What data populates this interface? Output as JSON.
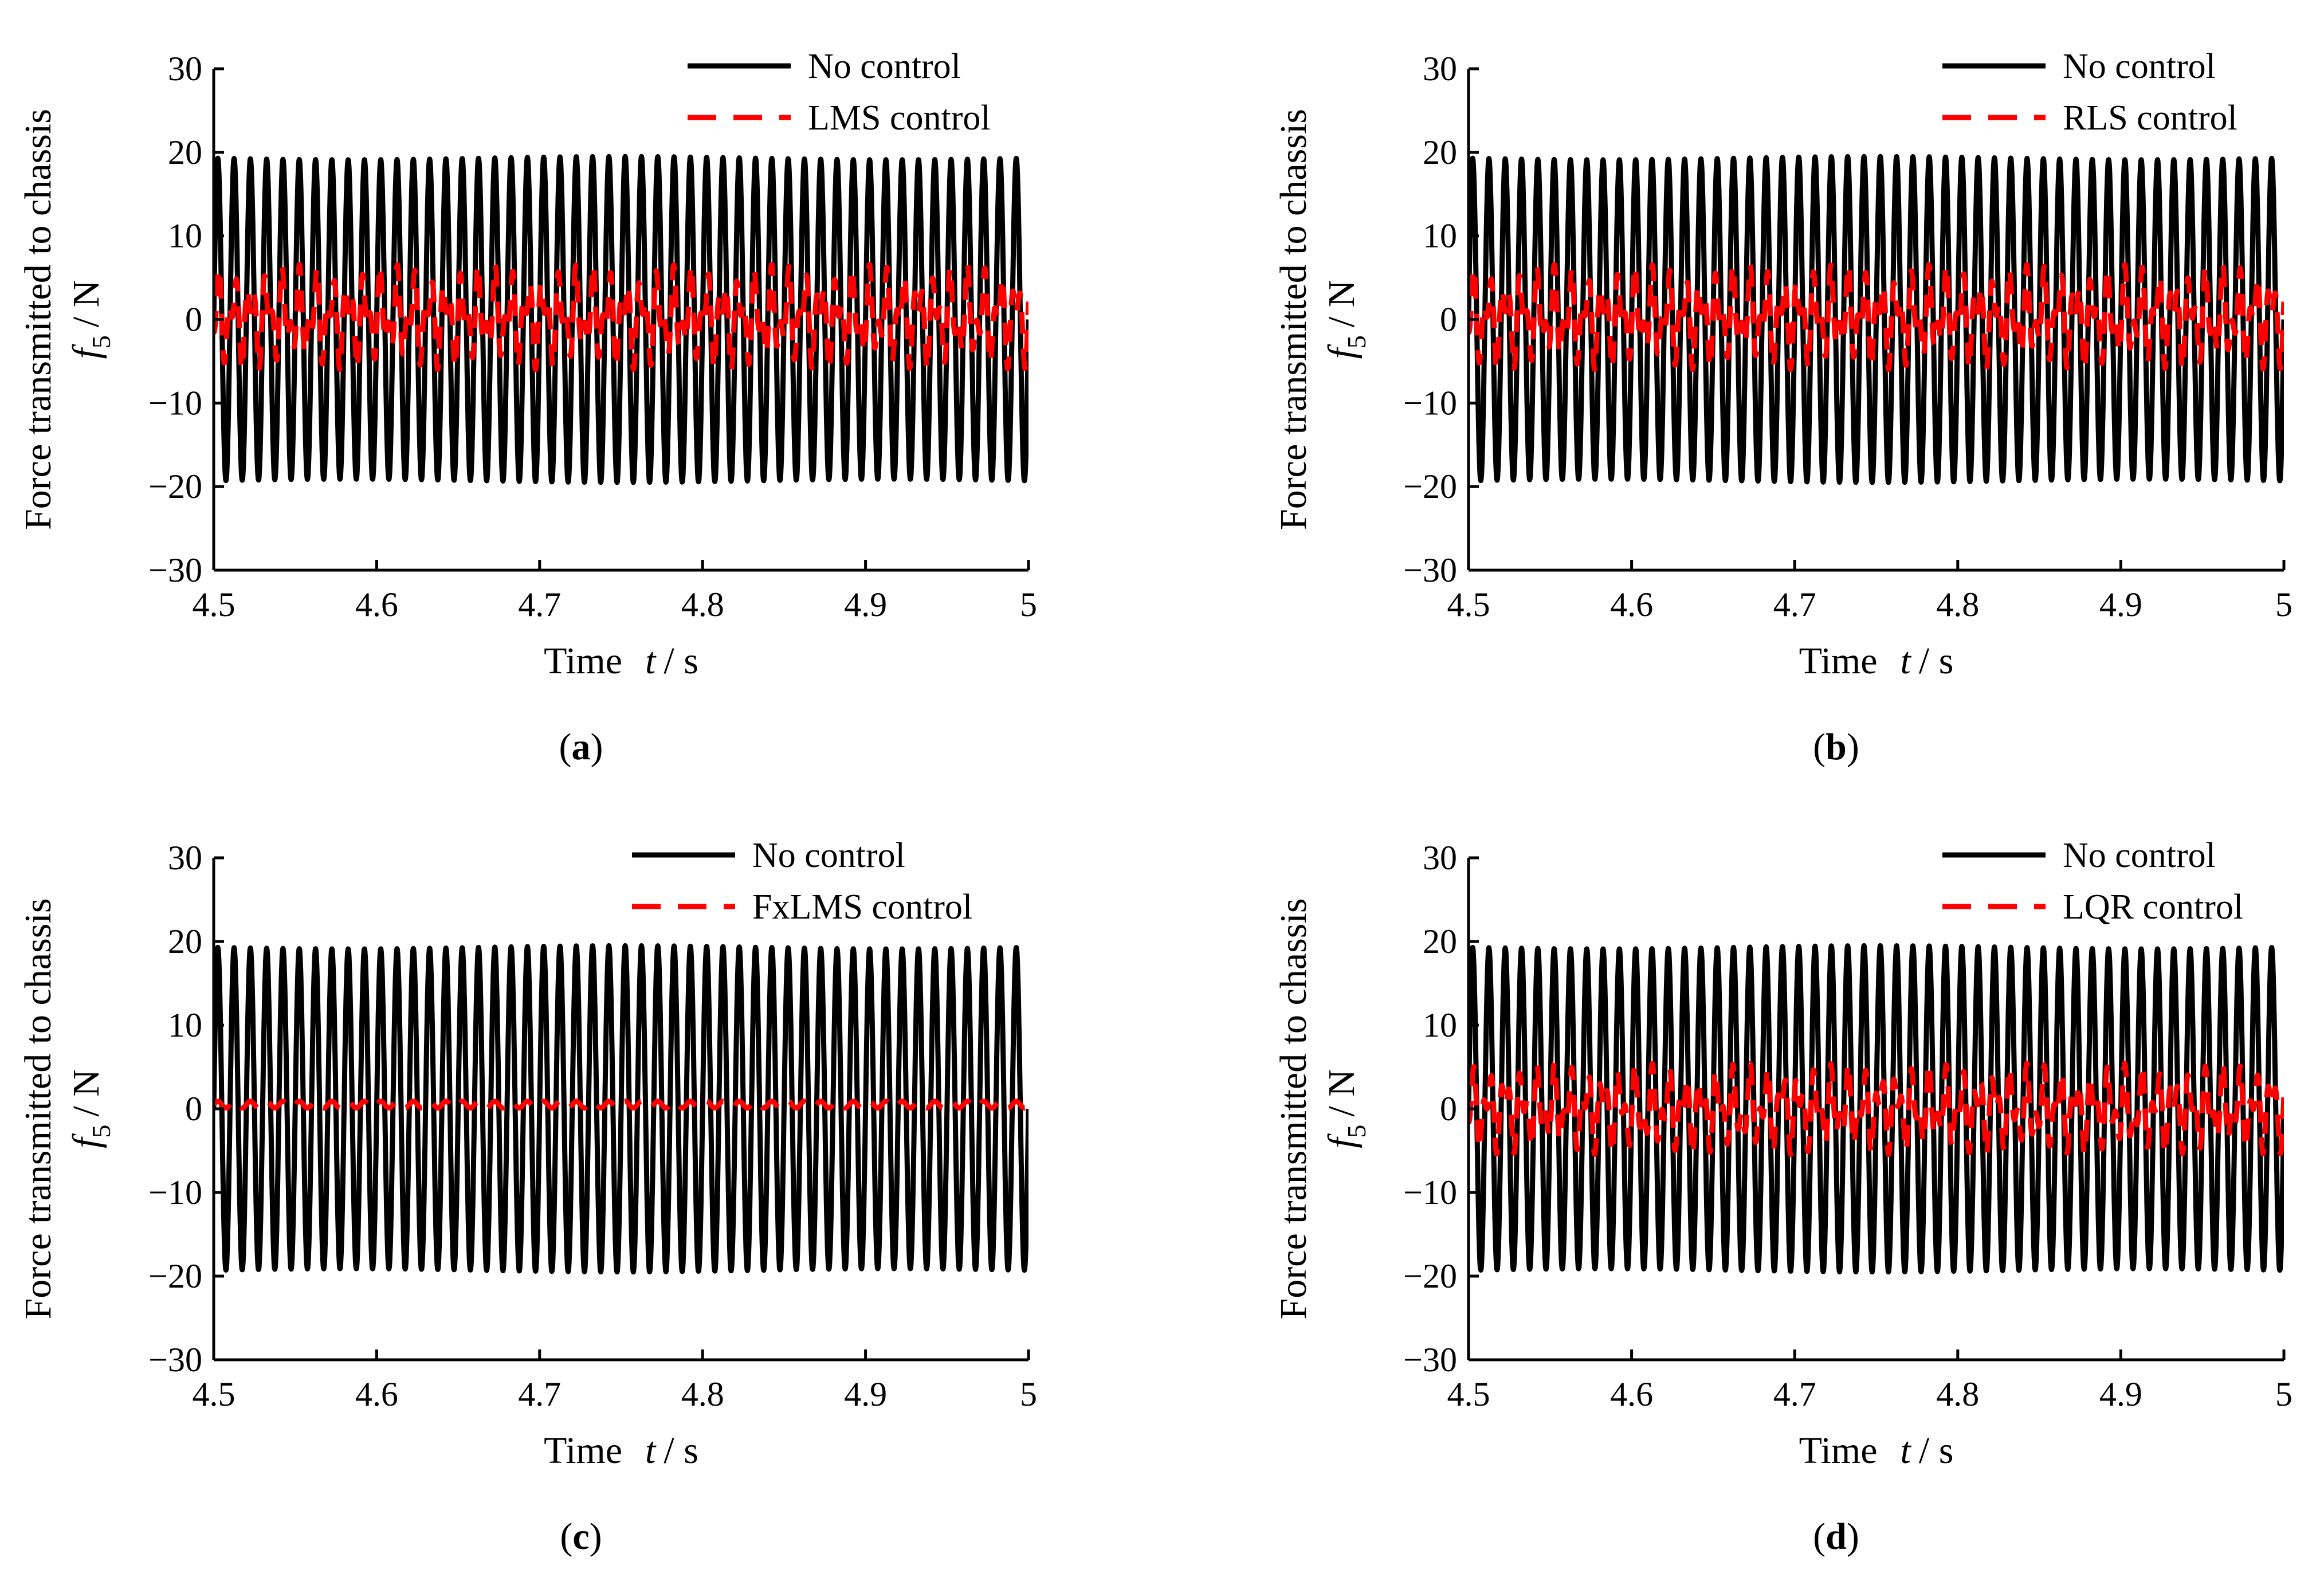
{
  "chart_data": [
    {
      "type": "line",
      "panel_label": "a",
      "xlabel_text": "Time",
      "xlabel_var": "t",
      "xlabel_unit": "/ s",
      "ylabel_text": "Force transmitted to chassis",
      "ylabel_var": "f",
      "ylabel_sub": "5",
      "ylabel_unit": "/ N",
      "xlim": [
        4.5,
        5.0
      ],
      "ylim": [
        -30,
        30
      ],
      "xticks": [
        "4.5",
        "4.6",
        "4.7",
        "4.8",
        "4.9",
        "5"
      ],
      "yticks": [
        "30",
        "20",
        "10",
        "0",
        "−10",
        "−20",
        "−30"
      ],
      "series": [
        {
          "name": "No control",
          "color": "#000000",
          "style": "solid",
          "kind": "sine",
          "amplitude": 19.3,
          "frequency_hz": 100,
          "phase_deg": 0
        },
        {
          "name": "LMS control",
          "color": "#ff0000",
          "style": "dashed",
          "kind": "beat",
          "amplitude": 6.0,
          "frequency_hz": 100,
          "offset": 0.3
        }
      ]
    },
    {
      "type": "line",
      "panel_label": "b",
      "xlabel_text": "Time",
      "xlabel_var": "t",
      "xlabel_unit": "/ s",
      "ylabel_text": "Force transmitted to chassis",
      "ylabel_var": "f",
      "ylabel_sub": "5",
      "ylabel_unit": "/ N",
      "xlim": [
        4.5,
        5.0
      ],
      "ylim": [
        -30,
        30
      ],
      "xticks": [
        "4.5",
        "4.6",
        "4.7",
        "4.8",
        "4.9",
        "5"
      ],
      "yticks": [
        "30",
        "20",
        "10",
        "0",
        "−10",
        "−20",
        "−30"
      ],
      "series": [
        {
          "name": "No control",
          "color": "#000000",
          "style": "solid",
          "kind": "sine",
          "amplitude": 19.3,
          "frequency_hz": 100,
          "phase_deg": 0
        },
        {
          "name": "RLS control",
          "color": "#ff0000",
          "style": "dashed",
          "kind": "beat",
          "amplitude": 6.0,
          "frequency_hz": 100,
          "offset": 0.3
        }
      ]
    },
    {
      "type": "line",
      "panel_label": "c",
      "xlabel_text": "Time",
      "xlabel_var": "t",
      "xlabel_unit": "/ s",
      "ylabel_text": "Force transmitted to chassis",
      "ylabel_var": "f",
      "ylabel_sub": "5",
      "ylabel_unit": "/ N",
      "xlim": [
        4.5,
        5.0
      ],
      "ylim": [
        -30,
        30
      ],
      "xticks": [
        "4.5",
        "4.6",
        "4.7",
        "4.8",
        "4.9",
        "5"
      ],
      "yticks": [
        "30",
        "20",
        "10",
        "0",
        "−10",
        "−20",
        "−30"
      ],
      "series": [
        {
          "name": "No control",
          "color": "#000000",
          "style": "solid",
          "kind": "sine",
          "amplitude": 19.3,
          "frequency_hz": 100,
          "phase_deg": 0
        },
        {
          "name": "FxLMS control",
          "color": "#ff0000",
          "style": "dashed",
          "kind": "flat",
          "amplitude": 0.4,
          "frequency_hz": 100,
          "offset": 0.5
        }
      ]
    },
    {
      "type": "line",
      "panel_label": "d",
      "xlabel_text": "Time",
      "xlabel_var": "t",
      "xlabel_unit": "/ s",
      "ylabel_text": "Force transmitted to chassis",
      "ylabel_var": "f",
      "ylabel_sub": "5",
      "ylabel_unit": "/ N",
      "xlim": [
        4.5,
        5.0
      ],
      "ylim": [
        -30,
        30
      ],
      "xticks": [
        "4.5",
        "4.6",
        "4.7",
        "4.8",
        "4.9",
        "5"
      ],
      "yticks": [
        "30",
        "20",
        "10",
        "0",
        "−10",
        "−20",
        "−30"
      ],
      "series": [
        {
          "name": "No control",
          "color": "#000000",
          "style": "solid",
          "kind": "sine",
          "amplitude": 19.3,
          "frequency_hz": 100,
          "phase_deg": 0
        },
        {
          "name": "LQR control",
          "color": "#ff0000",
          "style": "dashed",
          "kind": "beat",
          "amplitude": 5.2,
          "frequency_hz": 100,
          "offset": 0.0
        }
      ]
    }
  ]
}
